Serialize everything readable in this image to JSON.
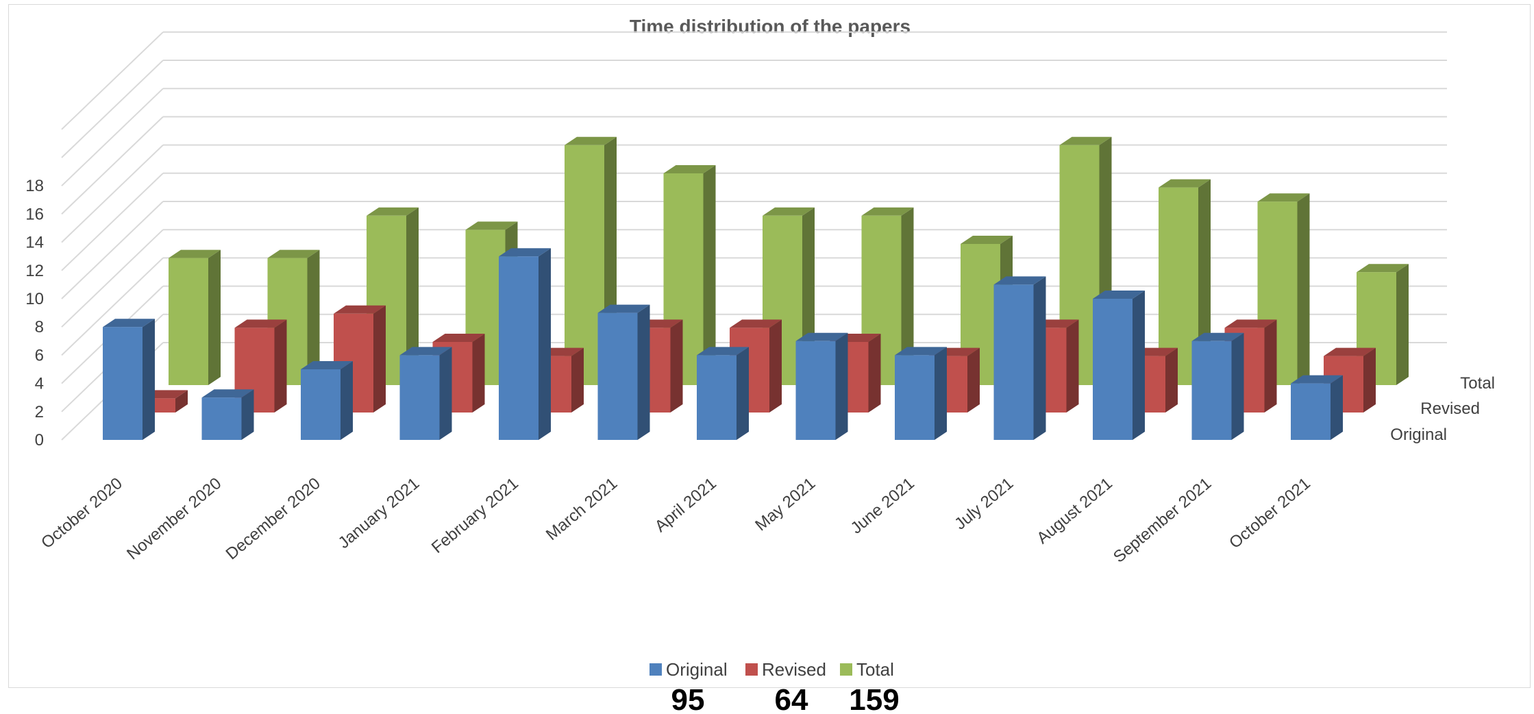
{
  "chart_data": {
    "type": "bar",
    "title": "Time distribution of the papers",
    "categories": [
      "October 2020",
      "November 2020",
      "December 2020",
      "January 2021",
      "February 2021",
      "March 2021",
      "April 2021",
      "May 2021",
      "June 2021",
      "July 2021",
      "August 2021",
      "September 2021",
      "October 2021"
    ],
    "series": [
      {
        "name": "Original",
        "values": [
          8,
          3,
          5,
          6,
          13,
          9,
          6,
          7,
          6,
          11,
          10,
          7,
          4
        ],
        "color": "#4f81bd"
      },
      {
        "name": "Revised",
        "values": [
          1,
          6,
          7,
          5,
          4,
          6,
          6,
          5,
          4,
          6,
          4,
          6,
          4
        ],
        "color": "#c0504d"
      },
      {
        "name": "Total",
        "values": [
          9,
          9,
          12,
          11,
          17,
          15,
          12,
          12,
          10,
          17,
          14,
          13,
          8
        ],
        "color": "#9bbb59"
      }
    ],
    "yticks": [
      0,
      2,
      4,
      6,
      8,
      10,
      12,
      14,
      16,
      18
    ],
    "ylim": [
      0,
      22
    ],
    "grid": true,
    "legend_position": "bottom",
    "totals": [
      "95",
      "64",
      "159"
    ]
  }
}
